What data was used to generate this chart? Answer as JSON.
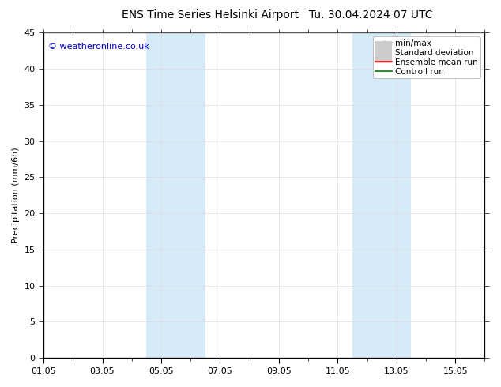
{
  "title": "ENS Time Series Helsinki Airport",
  "title2": "Tu. 30.04.2024 07 UTC",
  "ylabel": "Precipitation (mm/6h)",
  "watermark": "© weatheronline.co.uk",
  "watermark_color": "#0000cc",
  "background_color": "#ffffff",
  "plot_bg_color": "#ffffff",
  "ylim": [
    0,
    45
  ],
  "yticks": [
    0,
    5,
    10,
    15,
    20,
    25,
    30,
    35,
    40,
    45
  ],
  "xlim": [
    0,
    15
  ],
  "xtick_labels": [
    "01.05",
    "03.05",
    "05.05",
    "07.05",
    "09.05",
    "11.05",
    "13.05",
    "15.05"
  ],
  "xtick_positions": [
    0,
    2,
    4,
    6,
    8,
    10,
    12,
    14
  ],
  "shaded_regions": [
    {
      "start": 3.5,
      "end": 5.5,
      "color": "#d6eaf8",
      "alpha": 1.0
    },
    {
      "start": 10.5,
      "end": 12.5,
      "color": "#d6eaf8",
      "alpha": 1.0
    }
  ],
  "legend_items": [
    {
      "label": "min/max",
      "color": "#999999",
      "lw": 1.2,
      "style": "minmax"
    },
    {
      "label": "Standard deviation",
      "color": "#cccccc",
      "lw": 5,
      "style": "thick"
    },
    {
      "label": "Ensemble mean run",
      "color": "#ff0000",
      "lw": 1.2,
      "style": "line"
    },
    {
      "label": "Controll run",
      "color": "#008000",
      "lw": 1.2,
      "style": "line"
    }
  ],
  "title_fontsize": 10,
  "axis_fontsize": 8,
  "tick_fontsize": 8,
  "watermark_fontsize": 8,
  "legend_fontsize": 7.5
}
